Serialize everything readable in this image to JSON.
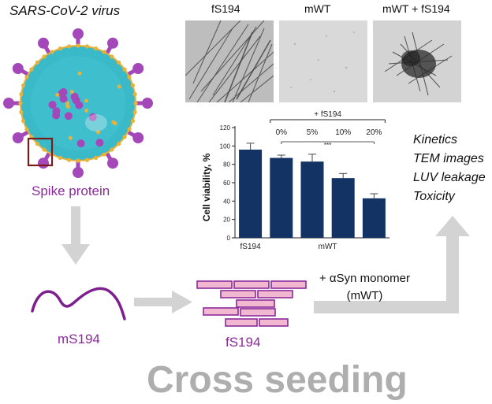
{
  "virus": {
    "title": "SARS-CoV-2 virus",
    "spike_label": "Spike protein"
  },
  "peptide": {
    "monomer_label": "mS194",
    "fibril_label": "fS194"
  },
  "tem": {
    "labels": [
      "fS194",
      "mWT",
      "mWT + fS194"
    ]
  },
  "seeding": {
    "line1": "+ αSyn monomer",
    "line2": "(mWT)"
  },
  "assays": [
    "Kinetics",
    "TEM images",
    "LUV leakage",
    "Toxicity"
  ],
  "footer": {
    "title": "Cross seeding"
  },
  "colors": {
    "purple": "#8b2a9a",
    "bar": "#123363",
    "arrow": "#d3d3d3",
    "fibril_fill": "#f2b8cf",
    "virus_body": "#3ab9c8"
  },
  "chart_data": {
    "type": "bar",
    "ylabel": "Cell viability, %",
    "ylim": [
      0,
      120
    ],
    "yticks": [
      0,
      20,
      40,
      60,
      80,
      100,
      120
    ],
    "values": [
      96,
      87,
      83,
      65,
      43
    ],
    "errors": [
      7,
      3,
      8,
      5,
      5
    ],
    "bracket_label": "+ fS194",
    "percent_labels": [
      "0%",
      "5%",
      "10%",
      "20%"
    ],
    "group_labels": [
      "fS194",
      "mWT"
    ],
    "significance": "***"
  }
}
